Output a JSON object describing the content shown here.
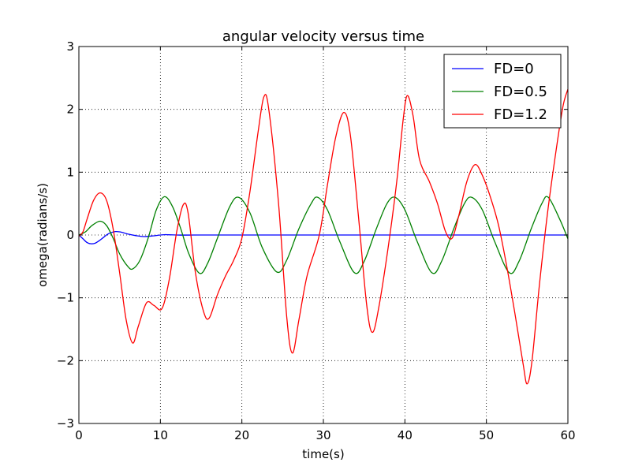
{
  "chart_data": {
    "type": "line",
    "title": "angular velocity versus time",
    "xlabel": "time(s)",
    "ylabel": "omega(radians/s)",
    "xlim": [
      0,
      60
    ],
    "ylim": [
      -3,
      3
    ],
    "xticks": [
      0,
      10,
      20,
      30,
      40,
      50,
      60
    ],
    "yticks": [
      -3,
      -2,
      -1,
      0,
      1,
      2,
      3
    ],
    "xtick_labels": [
      "0",
      "10",
      "20",
      "30",
      "40",
      "50",
      "60"
    ],
    "ytick_labels": [
      "−3",
      "−2",
      "−1",
      "0",
      "1",
      "2",
      "3"
    ],
    "grid": true,
    "grid_style": "dotted",
    "legend_position": "top-right",
    "series": [
      {
        "name": "FD=0",
        "color": "#0000ff",
        "points": [
          [
            0,
            0
          ],
          [
            0.5,
            -0.06
          ],
          [
            1,
            -0.12
          ],
          [
            1.5,
            -0.14
          ],
          [
            2,
            -0.13
          ],
          [
            2.5,
            -0.09
          ],
          [
            3,
            -0.04
          ],
          [
            3.5,
            0.01
          ],
          [
            4,
            0.04
          ],
          [
            4.5,
            0.055
          ],
          [
            5,
            0.05
          ],
          [
            5.5,
            0.035
          ],
          [
            6,
            0.015
          ],
          [
            7,
            -0.01
          ],
          [
            8,
            -0.025
          ],
          [
            9,
            -0.015
          ],
          [
            10,
            0.0
          ],
          [
            10.5,
            0.005
          ],
          [
            11,
            0.004
          ],
          [
            12,
            0.0
          ],
          [
            13,
            -0.003
          ],
          [
            14,
            -0.002
          ],
          [
            16,
            0
          ],
          [
            60,
            0
          ]
        ]
      },
      {
        "name": "FD=0.5",
        "color": "#008000",
        "points": [
          [
            0,
            0
          ],
          [
            0.8,
            0.05
          ],
          [
            1.6,
            0.15
          ],
          [
            2.6,
            0.22
          ],
          [
            3.4,
            0.15
          ],
          [
            4.2,
            -0.05
          ],
          [
            5,
            -0.3
          ],
          [
            6,
            -0.5
          ],
          [
            6.6,
            -0.54
          ],
          [
            7.5,
            -0.4
          ],
          [
            8.5,
            -0.05
          ],
          [
            9.5,
            0.4
          ],
          [
            10.5,
            0.61
          ],
          [
            11.5,
            0.45
          ],
          [
            12.5,
            0.1
          ],
          [
            13.5,
            -0.3
          ],
          [
            14.8,
            -0.61
          ],
          [
            15.8,
            -0.45
          ],
          [
            17,
            -0.05
          ],
          [
            18.5,
            0.45
          ],
          [
            19.6,
            0.6
          ],
          [
            21,
            0.35
          ],
          [
            22.5,
            -0.2
          ],
          [
            24.3,
            -0.59
          ],
          [
            25.5,
            -0.4
          ],
          [
            27,
            0.1
          ],
          [
            28.5,
            0.5
          ],
          [
            29.3,
            0.6
          ],
          [
            30.5,
            0.4
          ],
          [
            32,
            -0.1
          ],
          [
            33.8,
            -0.6
          ],
          [
            35,
            -0.42
          ],
          [
            36.5,
            0.1
          ],
          [
            37.8,
            0.5
          ],
          [
            38.8,
            0.6
          ],
          [
            40,
            0.4
          ],
          [
            41.5,
            -0.1
          ],
          [
            43.3,
            -0.6
          ],
          [
            44.5,
            -0.42
          ],
          [
            46,
            0.1
          ],
          [
            47.3,
            0.5
          ],
          [
            48.2,
            0.6
          ],
          [
            49.5,
            0.4
          ],
          [
            51,
            -0.1
          ],
          [
            52.8,
            -0.6
          ],
          [
            54,
            -0.42
          ],
          [
            55.5,
            0.1
          ],
          [
            56.8,
            0.5
          ],
          [
            57.6,
            0.6
          ],
          [
            59,
            0.25
          ],
          [
            60,
            -0.06
          ]
        ]
      },
      {
        "name": "FD=1.2",
        "color": "#ff0000",
        "points": [
          [
            0,
            -0.02
          ],
          [
            0.5,
            0.05
          ],
          [
            1,
            0.25
          ],
          [
            1.8,
            0.55
          ],
          [
            2.6,
            0.67
          ],
          [
            3.4,
            0.55
          ],
          [
            4.2,
            0.1
          ],
          [
            5,
            -0.6
          ],
          [
            5.8,
            -1.35
          ],
          [
            6.6,
            -1.72
          ],
          [
            7.3,
            -1.45
          ],
          [
            8.3,
            -1.08
          ],
          [
            9.2,
            -1.12
          ],
          [
            10.2,
            -1.17
          ],
          [
            11.1,
            -0.7
          ],
          [
            12,
            0.05
          ],
          [
            12.8,
            0.48
          ],
          [
            13.4,
            0.35
          ],
          [
            14.3,
            -0.6
          ],
          [
            15.3,
            -1.22
          ],
          [
            16,
            -1.32
          ],
          [
            17,
            -0.95
          ],
          [
            18,
            -0.65
          ],
          [
            19,
            -0.4
          ],
          [
            20,
            -0.05
          ],
          [
            21,
            0.7
          ],
          [
            22,
            1.65
          ],
          [
            22.7,
            2.2
          ],
          [
            23.3,
            2.0
          ],
          [
            24.5,
            0.5
          ],
          [
            25.5,
            -1.3
          ],
          [
            26.2,
            -1.88
          ],
          [
            27,
            -1.35
          ],
          [
            28,
            -0.65
          ],
          [
            29.5,
            0.0
          ],
          [
            30.5,
            0.8
          ],
          [
            31.5,
            1.55
          ],
          [
            32.5,
            1.95
          ],
          [
            33.3,
            1.6
          ],
          [
            34.3,
            0.3
          ],
          [
            35.3,
            -1.1
          ],
          [
            36,
            -1.55
          ],
          [
            36.8,
            -1.15
          ],
          [
            38,
            -0.15
          ],
          [
            39,
            0.85
          ],
          [
            39.8,
            1.85
          ],
          [
            40.3,
            2.22
          ],
          [
            41,
            1.9
          ],
          [
            41.8,
            1.2
          ],
          [
            43,
            0.85
          ],
          [
            44,
            0.5
          ],
          [
            45,
            0.05
          ],
          [
            45.8,
            -0.05
          ],
          [
            46.6,
            0.3
          ],
          [
            47.6,
            0.85
          ],
          [
            48.6,
            1.12
          ],
          [
            49.5,
            0.95
          ],
          [
            50.5,
            0.6
          ],
          [
            51.5,
            0.15
          ],
          [
            52.5,
            -0.5
          ],
          [
            53.5,
            -1.25
          ],
          [
            54.5,
            -2.05
          ],
          [
            55,
            -2.37
          ],
          [
            55.6,
            -2.0
          ],
          [
            56.5,
            -0.8
          ],
          [
            57.5,
            0.35
          ],
          [
            58.5,
            1.3
          ],
          [
            59.4,
            2.05
          ],
          [
            60,
            2.32
          ]
        ]
      }
    ]
  }
}
